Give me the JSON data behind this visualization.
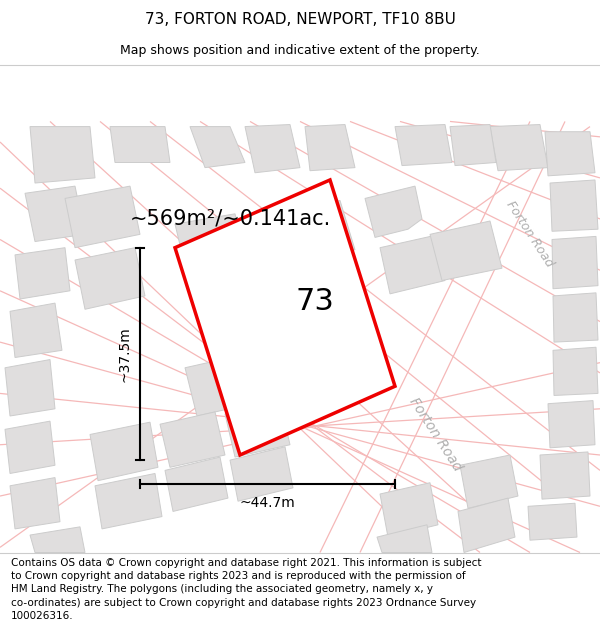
{
  "title": "73, FORTON ROAD, NEWPORT, TF10 8BU",
  "subtitle": "Map shows position and indicative extent of the property.",
  "area_text": "~569m²/~0.141ac.",
  "width_label": "~44.7m",
  "height_label": "~37.5m",
  "property_label": "73",
  "road_label_center": "Forton Road",
  "road_label_right": "Forton Road",
  "footer_lines": [
    "Contains OS data © Crown copyright and database right 2021. This information is subject",
    "to Crown copyright and database rights 2023 and is reproduced with the permission of",
    "HM Land Registry. The polygons (including the associated geometry, namely x, y",
    "co-ordinates) are subject to Crown copyright and database rights 2023 Ordnance Survey",
    "100026316."
  ],
  "bg_color": "#ffffff",
  "map_bg": "#f8f7f7",
  "block_color": "#e0dede",
  "block_edge_color": "#cccccc",
  "road_color": "#f5b8b8",
  "property_fill": "#ffffff",
  "property_edge_color": "#ee0000",
  "dim_line_color": "#000000",
  "separator_color": "#cccccc",
  "road_label_color": "#b0b0b0",
  "title_fontsize": 11,
  "subtitle_fontsize": 9,
  "area_fontsize": 15,
  "prop_label_fontsize": 22,
  "dim_label_fontsize": 10,
  "footer_fontsize": 7.5,
  "road_label_fontsize": 10
}
